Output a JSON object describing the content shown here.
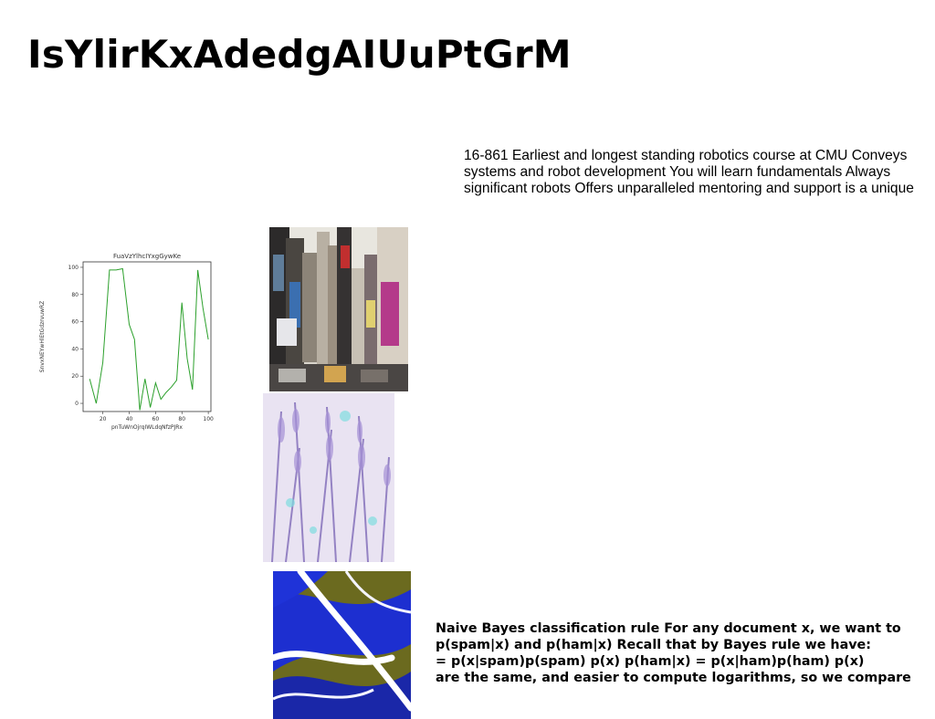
{
  "title": "IsYlirKxAdedgAIUuPtGrM",
  "top_paragraph": {
    "lines": [
      "16-861 Earliest and longest standing robotics course at CMU Conveys",
      "systems and robot development You will learn fundamentals Always",
      "significant robots Offers unparalleled mentoring and support is a unique"
    ]
  },
  "bottom_paragraph": {
    "lines": [
      "Naive Bayes classification rule For any document x, we want to",
      "p(spam|x) and p(ham|x) Recall that by Bayes rule we have:",
      "= p(x|spam)p(spam) p(x) p(ham|x) = p(x|ham)p(ham) p(x)",
      "are the same, and easier to compute logarithms, so we compare"
    ]
  },
  "chart_data": {
    "type": "line",
    "title": "FuaVzYlhcIYxgGywKe",
    "xlabel": "pnTuWnOjrqIWLdqNfzPJRx",
    "ylabel": "SnvxNEYwHlEtGdzrvuwRZ",
    "xlim": [
      5,
      102
    ],
    "ylim": [
      -6,
      104
    ],
    "xticks": [
      20,
      40,
      60,
      80,
      100
    ],
    "yticks": [
      0,
      20,
      40,
      60,
      80,
      100
    ],
    "grid": false,
    "series": [
      {
        "color": "#2ca02c",
        "x": [
          10,
          15,
          20,
          25,
          30,
          35,
          40,
          44,
          48,
          52,
          56,
          60,
          64,
          68,
          72,
          76,
          80,
          84,
          88,
          92,
          96,
          100
        ],
        "y": [
          18,
          0,
          30,
          98,
          98,
          99,
          58,
          47,
          -5,
          18,
          -3,
          15,
          3,
          8,
          12,
          17,
          74,
          33,
          10,
          98,
          70,
          47
        ]
      }
    ]
  },
  "images": {
    "city": "city street scene with skyscrapers and billboards",
    "flowers": "lavender flowers photo",
    "paint": "abstract blue and white fluid paint"
  },
  "colors": {
    "line": "#2ca02c",
    "paint_blue": "#1d2fd0",
    "paint_olive": "#6b6a1f"
  }
}
